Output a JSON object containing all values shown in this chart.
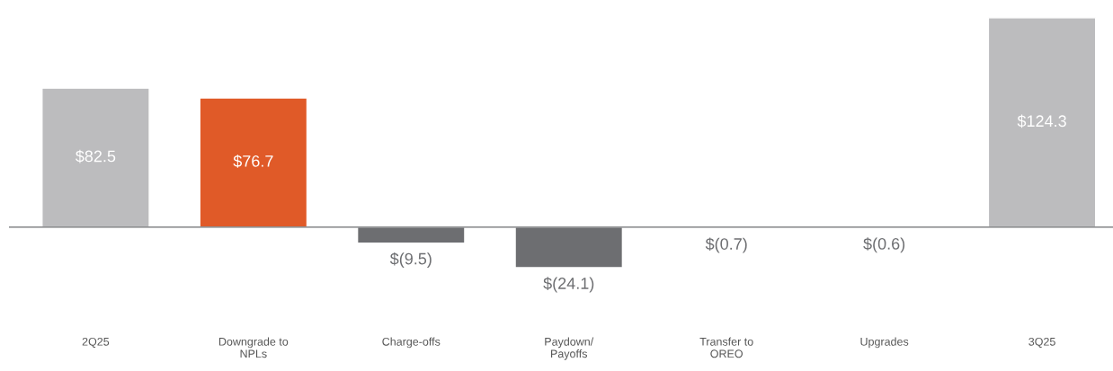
{
  "chart_data": {
    "type": "bar",
    "categories": [
      "2Q25",
      "Downgrade to\nNPLs",
      "Charge-offs",
      "Paydown/\nPayoffs",
      "Transfer to\nOREO",
      "Upgrades",
      "3Q25"
    ],
    "values": [
      82.5,
      76.7,
      -9.5,
      -24.1,
      -0.7,
      -0.6,
      124.3
    ],
    "colors": [
      "#bcbcbe",
      "#e05a28",
      "#6d6e71",
      "#6d6e71",
      "#6d6e71",
      "#6d6e71",
      "#bcbcbe"
    ],
    "value_labels": [
      "$82.5",
      "$76.7",
      "$(9.5)",
      "$(24.1)",
      "$(0.7)",
      "$(0.6)",
      "$124.3"
    ],
    "ref_lines": [
      {
        "axis": "y",
        "value": 0,
        "color": "#6d6e71"
      }
    ],
    "tick_labels": "x",
    "grid": false
  }
}
